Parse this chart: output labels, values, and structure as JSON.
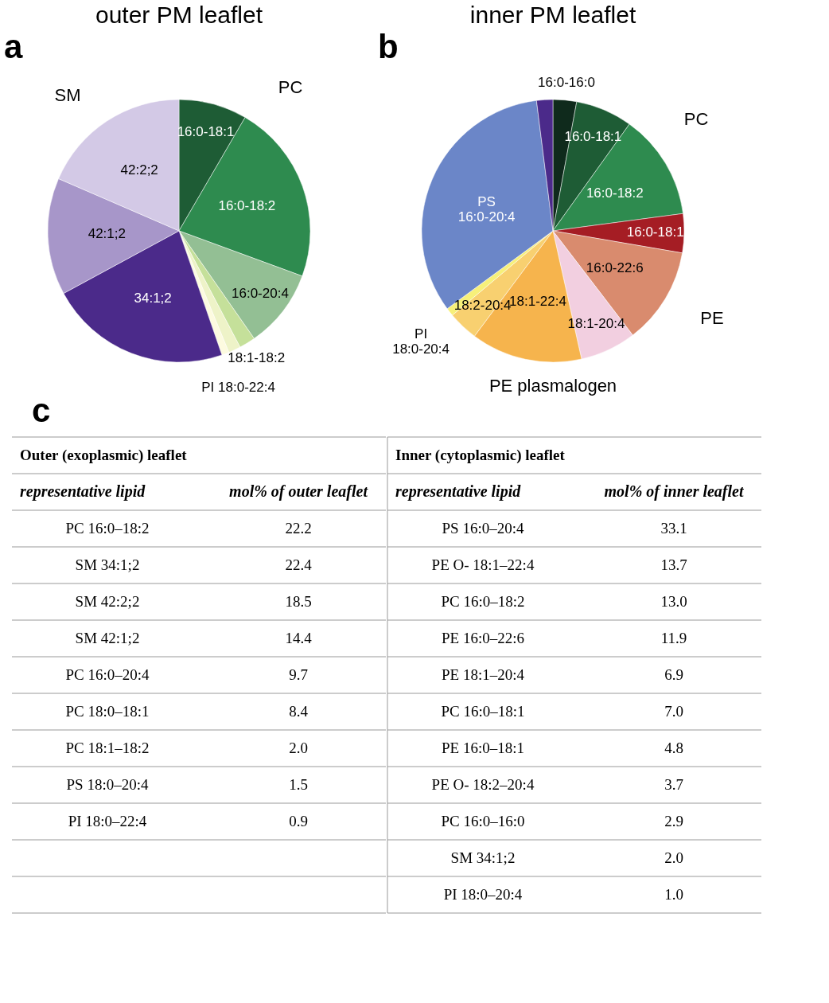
{
  "chart_data": [
    {
      "type": "pie",
      "title": "outer PM leaflet",
      "annotations": [
        "a",
        "PC",
        "SM"
      ],
      "categories": [
        "16:0-18:1",
        "16:0-18:2",
        "16:0-20:4",
        "18:1-18:2",
        null,
        "PI 18:0-22:4",
        "34:1;2",
        "42:1;2",
        "42:2;2"
      ],
      "values": [
        8.4,
        22.2,
        9.7,
        2.0,
        1.5,
        0.9,
        22.4,
        14.4,
        18.5
      ],
      "colors": [
        "#1e5c35",
        "#2e8b4f",
        "#93bf94",
        "#c5e09a",
        "#eef3c8",
        "#fdfbe0",
        "#4b2a8a",
        "#a796c9",
        "#d3c9e6"
      ]
    },
    {
      "type": "pie",
      "title": "inner PM leaflet",
      "annotations": [
        "b",
        "PC",
        "PE",
        "PE plasmalogen"
      ],
      "categories": [
        "16:0-16:0",
        "16:0-18:1",
        "16:0-18:2",
        "16:0-18:1",
        "16:0-22:6",
        "18:1-20:4",
        "18:1-22:4",
        "18:2-20:4",
        "PI\n18:0-20:4",
        "PS\n16:0-20:4",
        null
      ],
      "values": [
        2.9,
        7.0,
        13.0,
        4.8,
        11.9,
        6.9,
        13.7,
        3.7,
        1.0,
        33.1,
        2.0
      ],
      "colors": [
        "#0f2a1c",
        "#1e5c35",
        "#2e8b4f",
        "#a51d24",
        "#d98b6e",
        "#f2cfe0",
        "#f6b44d",
        "#f8d070",
        "#f7f07a",
        "#6b86c8",
        "#4b2a8a"
      ]
    },
    {
      "type": "other",
      "title": "Outer (exoplasmic) leaflet",
      "categories": [
        "representative lipid",
        "mol% of outer leaflet"
      ],
      "annotations": [
        "c",
        "PC 16:0–18:2",
        "22.2",
        "SM 34:1;2",
        "22.4",
        "SM 42:2;2",
        "18.5",
        "SM 42:1;2",
        "14.4",
        "PC 16:0–20:4",
        "9.7",
        "PC 18:0–18:1",
        "8.4",
        "PC 18:1–18:2",
        "2.0",
        "PS 18:0–20:4",
        "1.5",
        "PI 18:0–22:4",
        "0.9"
      ]
    },
    {
      "type": "other",
      "title": "Inner (cytoplasmic) leaflet",
      "categories": [
        "representative lipid",
        "mol% of inner leaflet"
      ],
      "annotations": [
        "PS 16:0–20:4",
        "33.1",
        "PE O- 18:1–22:4",
        "13.7",
        "PC 16:0–18:2",
        "13.0",
        "PE 16:0–22:6",
        "11.9",
        "PE 18:1–20:4",
        "6.9",
        "PC 16:0–18:1",
        "7.0",
        "PE 16:0–18:1",
        "4.8",
        "PE O- 18:2–20:4",
        "3.7",
        "PC 16:0–16:0",
        "2.9",
        "SM 34:1;2",
        "2.0",
        "PI 18:0–20:4",
        "1.0"
      ]
    }
  ]
}
